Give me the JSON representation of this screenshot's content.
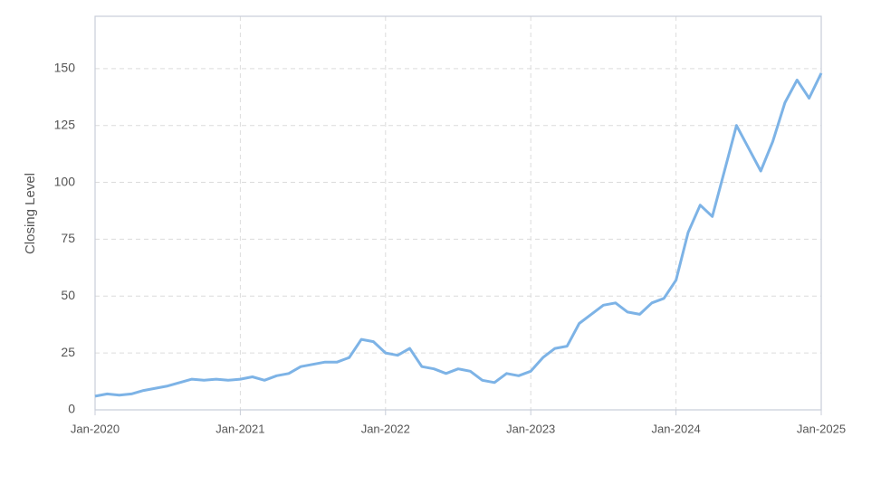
{
  "chart_data": {
    "type": "line",
    "y_label": "Closing Level",
    "x": [
      "2020-01",
      "2020-02",
      "2020-03",
      "2020-04",
      "2020-05",
      "2020-06",
      "2020-07",
      "2020-08",
      "2020-09",
      "2020-10",
      "2020-11",
      "2020-12",
      "2021-01",
      "2021-02",
      "2021-03",
      "2021-04",
      "2021-05",
      "2021-06",
      "2021-07",
      "2021-08",
      "2021-09",
      "2021-10",
      "2021-11",
      "2021-12",
      "2022-01",
      "2022-02",
      "2022-03",
      "2022-04",
      "2022-05",
      "2022-06",
      "2022-07",
      "2022-08",
      "2022-09",
      "2022-10",
      "2022-11",
      "2022-12",
      "2023-01",
      "2023-02",
      "2023-03",
      "2023-04",
      "2023-05",
      "2023-06",
      "2023-07",
      "2023-08",
      "2023-09",
      "2023-10",
      "2023-11",
      "2023-12",
      "2024-01",
      "2024-02",
      "2024-03",
      "2024-04",
      "2024-05",
      "2024-06",
      "2024-07",
      "2024-08",
      "2024-09",
      "2024-10",
      "2024-11",
      "2024-12",
      "2025-01"
    ],
    "series": [
      {
        "name": "Closing Level",
        "color": "#7db3e6",
        "values": [
          6,
          7,
          6.5,
          7,
          8.5,
          9.5,
          10.5,
          12,
          13.5,
          13,
          13.5,
          13,
          13.5,
          14.5,
          13,
          15,
          16,
          19,
          20,
          21,
          21,
          23,
          31,
          30,
          25,
          24,
          27,
          19,
          18,
          16,
          18,
          17,
          13,
          12,
          16,
          15,
          17,
          23,
          27,
          28,
          38,
          42,
          46,
          47,
          43,
          42,
          47,
          49,
          57,
          78,
          90,
          85,
          105,
          125,
          115,
          105,
          118,
          135,
          145,
          137,
          148
        ]
      }
    ],
    "xlim": [
      "2020-01",
      "2025-01"
    ],
    "xticks": [
      {
        "value": "2020-01",
        "label": "Jan-2020"
      },
      {
        "value": "2021-01",
        "label": "Jan-2021"
      },
      {
        "value": "2022-01",
        "label": "Jan-2022"
      },
      {
        "value": "2023-01",
        "label": "Jan-2023"
      },
      {
        "value": "2024-01",
        "label": "Jan-2024"
      },
      {
        "value": "2025-01",
        "label": "Jan-2025"
      }
    ],
    "ylim": [
      0,
      173
    ],
    "yticks": [
      0,
      25,
      50,
      75,
      100,
      125,
      150
    ],
    "grid": true
  }
}
